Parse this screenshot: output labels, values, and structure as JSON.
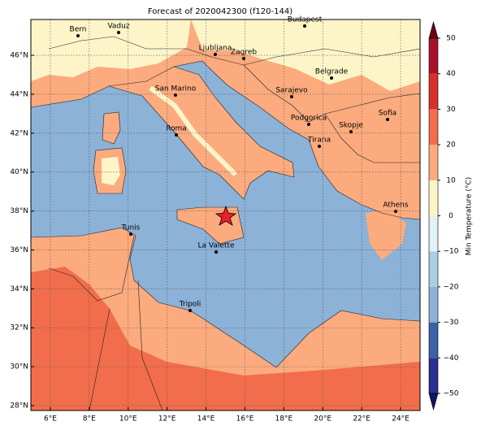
{
  "chart_data": {
    "type": "map",
    "title": "Forecast of 2020042300 (f120-144)",
    "xlim": [
      5,
      25
    ],
    "ylim": [
      27.75,
      47.84
    ],
    "xticks": [
      {
        "value": 6,
        "label": "6°E"
      },
      {
        "value": 8,
        "label": "8°E"
      },
      {
        "value": 10,
        "label": "10°E"
      },
      {
        "value": 12,
        "label": "12°E"
      },
      {
        "value": 14,
        "label": "14°E"
      },
      {
        "value": 16,
        "label": "16°E"
      },
      {
        "value": 18,
        "label": "18°E"
      },
      {
        "value": 20,
        "label": "20°E"
      },
      {
        "value": 22,
        "label": "22°E"
      },
      {
        "value": 24,
        "label": "24°E"
      }
    ],
    "yticks": [
      {
        "value": 28,
        "label": "28°N"
      },
      {
        "value": 30,
        "label": "30°N"
      },
      {
        "value": 32,
        "label": "32°N"
      },
      {
        "value": 34,
        "label": "34°N"
      },
      {
        "value": 36,
        "label": "36°N"
      },
      {
        "value": 38,
        "label": "38°N"
      },
      {
        "value": 40,
        "label": "40°N"
      },
      {
        "value": 42,
        "label": "42°N"
      },
      {
        "value": 44,
        "label": "44°N"
      },
      {
        "value": 46,
        "label": "46°N"
      }
    ],
    "grid": true,
    "cities": [
      "Bern",
      "Vaduz",
      "Ljubljana",
      "Zagreb",
      "Budapest",
      "San Marino",
      "Sarajevo",
      "Belgrade",
      "Roma",
      "Podgorica",
      "Skopje",
      "Sofia",
      "Tirana",
      "Athens",
      "Tunis",
      "La Valette",
      "Tripoli"
    ],
    "colorbar": {
      "label": "Min Temperature (°C)",
      "ticks": [
        {
          "value": -50,
          "label": "−50"
        },
        {
          "value": -40,
          "label": "−40"
        },
        {
          "value": -30,
          "label": "−30"
        },
        {
          "value": -20,
          "label": "−20"
        },
        {
          "value": -10,
          "label": "−10"
        },
        0,
        10,
        20,
        30,
        40,
        50
      ],
      "colors": [
        "#2b2f8f",
        "#3b62a6",
        "#8cb2d8",
        "#a9cfe5",
        "#e2f1f6",
        "#fdf5c8",
        "#fcab7e",
        "#f26d4b",
        "#d8302a",
        "#a8112c"
      ],
      "under_color": "#111660",
      "over_color": "#6b0018"
    }
  }
}
